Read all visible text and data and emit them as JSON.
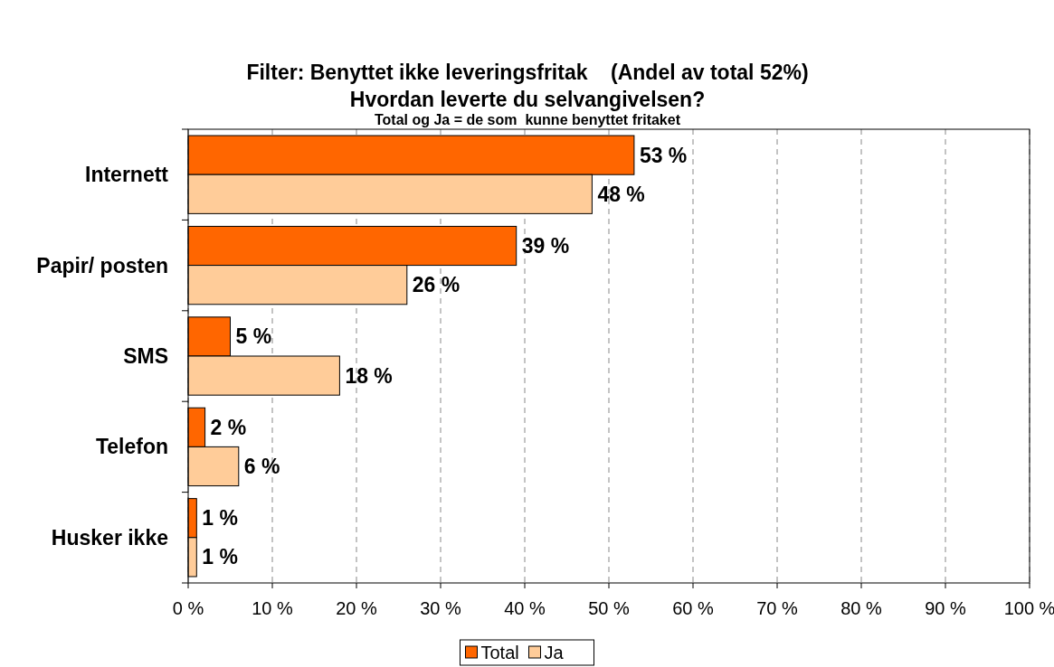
{
  "chart_data": {
    "type": "bar",
    "orientation": "horizontal",
    "title": "Filter: Benyttet ikke leveringsfritak    (Andel av total 52%)",
    "subtitle": "Hvordan leverte du selvangivelsen?",
    "annotations": [
      "Total og Ja = de som  kunne benyttet fritaket"
    ],
    "categories": [
      "Internett",
      "Papir/ posten",
      "SMS",
      "Telefon",
      "Husker ikke"
    ],
    "series": [
      {
        "name": "Total",
        "color": "#ff6600",
        "values": [
          53,
          39,
          5,
          2,
          1
        ],
        "value_labels": [
          "53 %",
          "39 %",
          "5 %",
          "2 %",
          "1 %"
        ]
      },
      {
        "name": "Ja",
        "color": "#ffcc99",
        "values": [
          48,
          26,
          18,
          6,
          1
        ],
        "value_labels": [
          "48 %",
          "26 %",
          "18 %",
          "6 %",
          "1 %"
        ]
      }
    ],
    "xlim": [
      0,
      100
    ],
    "xticks": [
      {
        "value": 0,
        "label": "0 %"
      },
      {
        "value": 10,
        "label": "10 %"
      },
      {
        "value": 20,
        "label": "20 %"
      },
      {
        "value": 30,
        "label": "30 %"
      },
      {
        "value": 40,
        "label": "40 %"
      },
      {
        "value": 50,
        "label": "50 %"
      },
      {
        "value": 60,
        "label": "60 %"
      },
      {
        "value": 70,
        "label": "70 %"
      },
      {
        "value": 80,
        "label": "80 %"
      },
      {
        "value": 90,
        "label": "90 %"
      },
      {
        "value": 100,
        "label": "100 %"
      }
    ],
    "grid": "x",
    "legend": "bottom"
  }
}
